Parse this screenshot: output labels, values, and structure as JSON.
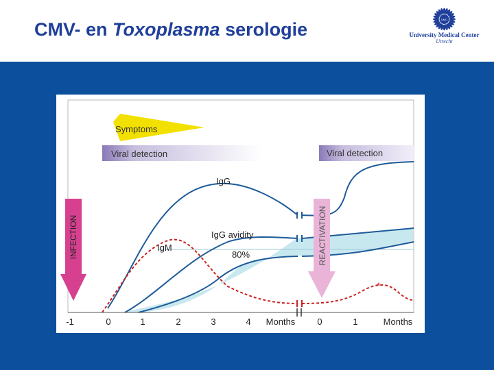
{
  "slide": {
    "title_prefix": "CMV- en ",
    "title_italic": "Toxoplasma",
    "title_suffix": " serologie"
  },
  "logo": {
    "icon": "sun-flower-emblem-icon",
    "line1": "University Medical Center",
    "line2": "Utrecht"
  },
  "colors": {
    "header_text": "#1f3f9a",
    "background_blue": "#0b4f9d",
    "curve": "#1e5b99",
    "igm": "#cc2222",
    "avidity_fill": "#c8e8f0",
    "symptoms": "#f2e000",
    "viral_detection": "#8a7ab8",
    "infection_arrow": "#d6408f",
    "reactivation_arrow": "#e9b4d8"
  },
  "figure": {
    "symptoms": "Symptoms",
    "viral_detection_1": "Viral detection",
    "viral_detection_2": "Viral detection",
    "infection": "INFECTION",
    "reactivation": "REACTIVATION",
    "igg": "IgG",
    "igg_avidity": "IgG avidity",
    "avidity_80": "80%",
    "igm": "IgM",
    "asterisk": "*",
    "x_ticks_1": [
      "-1",
      "0",
      "1",
      "2",
      "3",
      "4"
    ],
    "x_unit_1": "Months",
    "x_ticks_2": [
      "0",
      "1"
    ],
    "x_unit_2": "Months"
  }
}
